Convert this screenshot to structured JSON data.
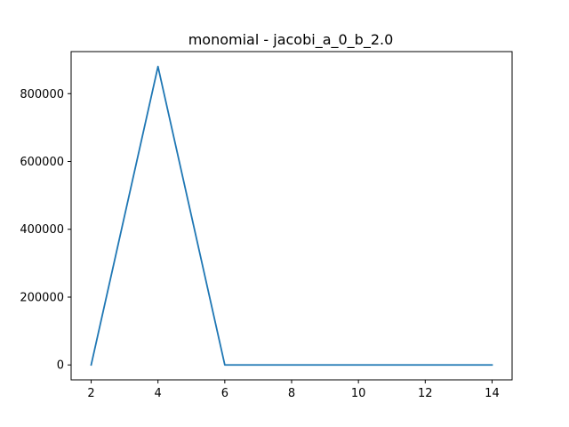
{
  "chart_data": {
    "type": "line",
    "title": "monomial - jacobi_a_0_b_2.0",
    "xlabel": "",
    "ylabel": "",
    "x": [
      2,
      4,
      6,
      8,
      10,
      12,
      14
    ],
    "series": [
      {
        "values": [
          0,
          880000,
          0,
          0,
          0,
          0,
          0
        ],
        "color": "#1f77b4"
      }
    ],
    "xlim": [
      1.4,
      14.6
    ],
    "ylim": [
      -44000,
      924000
    ],
    "xticks": [
      2,
      4,
      6,
      8,
      10,
      12,
      14
    ],
    "yticks": [
      0,
      200000,
      400000,
      600000,
      800000
    ],
    "xtick_labels": [
      "2",
      "4",
      "6",
      "8",
      "10",
      "12",
      "14"
    ],
    "ytick_labels": [
      "0",
      "200000",
      "400000",
      "600000",
      "800000"
    ],
    "grid": false,
    "legend": "none"
  }
}
